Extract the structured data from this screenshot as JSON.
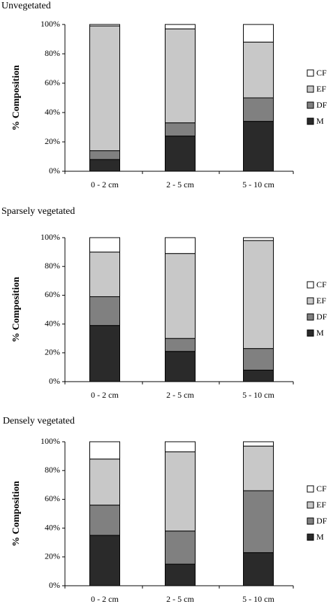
{
  "colors": {
    "CF": "#ffffff",
    "EF": "#c8c8c8",
    "DF": "#808080",
    "M": "#2a2a2a"
  },
  "chart_data": [
    {
      "type": "bar",
      "stacked": true,
      "title": "Unvegetated",
      "ylabel": "% Composition",
      "xlabel": "",
      "ylim": [
        0,
        100
      ],
      "yticks": [
        "0%",
        "20%",
        "40%",
        "60%",
        "80%",
        "100%"
      ],
      "grid": false,
      "legend_position": "right",
      "categories": [
        "0 - 2 cm",
        "2 - 5 cm",
        "5 - 10 cm"
      ],
      "series": [
        {
          "name": "M",
          "values": [
            8,
            24,
            34
          ]
        },
        {
          "name": "DF",
          "values": [
            6,
            9,
            16
          ]
        },
        {
          "name": "EF",
          "values": [
            85,
            64,
            38
          ]
        },
        {
          "name": "CF",
          "values": [
            1,
            3,
            12
          ]
        }
      ]
    },
    {
      "type": "bar",
      "stacked": true,
      "title": "Sparsely vegetated",
      "ylabel": "% Composition",
      "xlabel": "",
      "ylim": [
        0,
        100
      ],
      "yticks": [
        "0%",
        "20%",
        "40%",
        "60%",
        "80%",
        "100%"
      ],
      "grid": false,
      "legend_position": "right",
      "categories": [
        "0 - 2 cm",
        "2 - 5 cm",
        "5 - 10 cm"
      ],
      "series": [
        {
          "name": "M",
          "values": [
            39,
            21,
            8
          ]
        },
        {
          "name": "DF",
          "values": [
            20,
            9,
            15
          ]
        },
        {
          "name": "EF",
          "values": [
            31,
            59,
            75
          ]
        },
        {
          "name": "CF",
          "values": [
            10,
            11,
            2
          ]
        }
      ]
    },
    {
      "type": "bar",
      "stacked": true,
      "title": "Densely vegetated",
      "ylabel": "% Composition",
      "xlabel": "",
      "ylim": [
        0,
        100
      ],
      "yticks": [
        "0%",
        "20%",
        "40%",
        "60%",
        "80%",
        "100%"
      ],
      "grid": false,
      "legend_position": "right",
      "categories": [
        "0 - 2 cm",
        "2 - 5 cm",
        "5 - 10 cm"
      ],
      "series": [
        {
          "name": "M",
          "values": [
            35,
            15,
            23
          ]
        },
        {
          "name": "DF",
          "values": [
            21,
            23,
            43
          ]
        },
        {
          "name": "EF",
          "values": [
            32,
            55,
            31
          ]
        },
        {
          "name": "CF",
          "values": [
            12,
            7,
            3
          ]
        }
      ]
    }
  ]
}
